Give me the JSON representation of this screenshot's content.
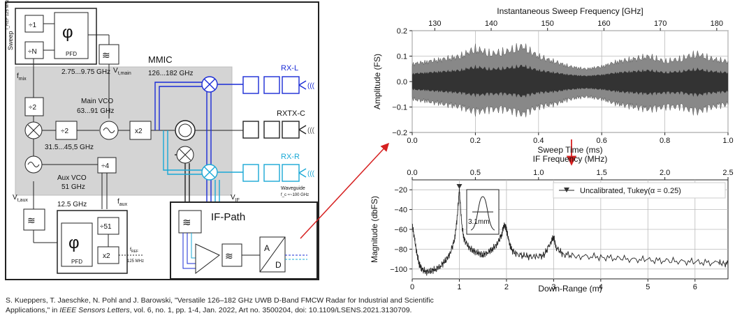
{
  "diagram": {
    "sweep_label": "Sweep",
    "fref_top": "f_REF\n125 MHz",
    "div1": "÷1",
    "divN": "÷N",
    "phi": "φ",
    "pfd": "PFD",
    "fmix": "f",
    "fmix_sub": "mix",
    "range1": "2.75...9.75 GHz",
    "vtmain": "V",
    "vtmain_sub": "t,main",
    "mmic_label": "MMIC",
    "range2": "126...182 GHz",
    "main_vco": "Main VCO",
    "main_vco_range": "63...91 GHz",
    "div2a": "÷2",
    "div2b": "÷2",
    "x2a": "x2",
    "range3": "31.5...45,5 GHz",
    "aux_vco": "Aux VCO",
    "aux_vco_freq": "51 GHz",
    "div4": "÷4",
    "vtaux": "V",
    "vtaux_sub": "t,aux",
    "f125": "12.5 GHz",
    "faux": "f",
    "faux_sub": "aux",
    "div51": "÷51",
    "x2b": "x2",
    "fref_bot": "f",
    "fref_bot_sub": "REF",
    "fref_bot_val": "125 MHz",
    "rxl": "RX-L",
    "rxtxc": "RXTX-C",
    "rxr": "RX-R",
    "waveguide": "Waveguide",
    "waveguide_cut": "f_c ≈~100 GHz",
    "vif": "V",
    "vif_sub": "IF",
    "ifpath": "IF-Path",
    "adc_a": "A",
    "adc_d": "D"
  },
  "chart_data": [
    {
      "type": "line",
      "title": "",
      "top_axis_label": "Instantaneous Sweep Frequency [GHz]",
      "top_ticks": [
        "130",
        "140",
        "150",
        "160",
        "170",
        "180"
      ],
      "top_range": [
        126,
        182
      ],
      "xlabel": "Sweep Time (ms)",
      "ylabel": "Amplitude (FS)",
      "xlim": [
        0.0,
        1.0
      ],
      "ylim": [
        -0.2,
        0.2
      ],
      "xticks": [
        "0.0",
        "0.2",
        "0.4",
        "0.6",
        "0.8",
        "1.0"
      ],
      "yticks": [
        "0.2",
        "0.1",
        "0.0",
        "−0.1",
        "−0.2"
      ],
      "grid": true,
      "series": [
        {
          "envelope_x": [
            0.0,
            0.05,
            0.1,
            0.15,
            0.2,
            0.25,
            0.3,
            0.35,
            0.4,
            0.45,
            0.5,
            0.55,
            0.6,
            0.65,
            0.7,
            0.75,
            0.8,
            0.85,
            0.9,
            0.95,
            1.0
          ],
          "envelope_upper": [
            0.07,
            0.08,
            0.09,
            0.1,
            0.13,
            0.11,
            0.12,
            0.14,
            0.1,
            0.08,
            0.06,
            0.05,
            0.06,
            0.08,
            0.09,
            0.1,
            0.08,
            0.09,
            0.11,
            0.09,
            0.08
          ],
          "envelope_lower": [
            -0.07,
            -0.08,
            -0.09,
            -0.1,
            -0.12,
            -0.11,
            -0.11,
            -0.13,
            -0.1,
            -0.09,
            -0.07,
            -0.06,
            -0.07,
            -0.09,
            -0.1,
            -0.11,
            -0.1,
            -0.1,
            -0.12,
            -0.1,
            -0.09
          ]
        }
      ]
    },
    {
      "type": "line",
      "title": "",
      "top_axis_label": "IF Frequency (MHz)",
      "top_ticks": [
        "0.0",
        "0.5",
        "1.0",
        "1.5",
        "2.0",
        "2.5"
      ],
      "top_range": [
        0.0,
        2.5
      ],
      "xlabel": "Down-Range (m)",
      "ylabel": "Magnitude (dbFS)",
      "xlim": [
        0,
        6.7
      ],
      "ylim": [
        -110,
        -10
      ],
      "xticks": [
        "0",
        "1",
        "2",
        "3",
        "4",
        "5",
        "6"
      ],
      "yticks": [
        "−20",
        "−40",
        "−60",
        "−80",
        "−100"
      ],
      "grid": true,
      "legend": "Uncalibrated, Tukey(α = 0.25)",
      "legend_position": "top-right",
      "inset_label": "3.1mm",
      "series": [
        {
          "name": "Uncalibrated, Tukey(α = 0.25)",
          "x": [
            0.0,
            0.05,
            0.1,
            0.15,
            0.2,
            0.3,
            0.4,
            0.5,
            0.6,
            0.7,
            0.8,
            0.9,
            0.95,
            1.0,
            1.05,
            1.1,
            1.2,
            1.3,
            1.4,
            1.5,
            1.6,
            1.7,
            1.8,
            1.9,
            1.95,
            2.0,
            2.05,
            2.1,
            2.2,
            2.4,
            2.6,
            2.8,
            2.95,
            3.0,
            3.05,
            3.2,
            3.5,
            4.0,
            4.5,
            5.0,
            5.5,
            6.0,
            6.5,
            6.7
          ],
          "y": [
            -55,
            -70,
            -85,
            -95,
            -100,
            -103,
            -102,
            -100,
            -97,
            -92,
            -85,
            -70,
            -50,
            -20,
            -55,
            -70,
            -78,
            -82,
            -84,
            -86,
            -83,
            -80,
            -75,
            -65,
            -55,
            -60,
            -72,
            -80,
            -85,
            -87,
            -88,
            -86,
            -72,
            -67,
            -78,
            -85,
            -87,
            -88,
            -90,
            -91,
            -92,
            -93,
            -94,
            -95
          ]
        }
      ],
      "marker": {
        "x": 1.0,
        "y": -17
      }
    }
  ],
  "citation": {
    "line1_a": "S. Kueppers, T. Jaeschke, N. Pohl and J. Barowski, \"Versatile 126–182 GHz UWB D-Band FMCW Radar for Industrial and Scientific",
    "line2_a": "Applications,\" in ",
    "line2_journal": "IEEE Sensors Letters",
    "line2_b": ", vol. 6, no. 1, pp. 1-4, Jan. 2022, Art no. 3500204, doi: 10.1109/LSENS.2021.3130709."
  }
}
